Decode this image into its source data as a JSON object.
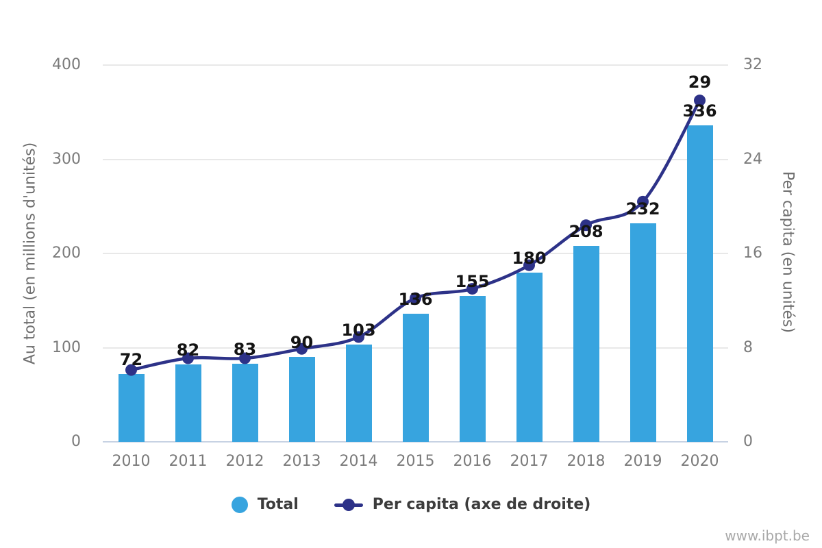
{
  "chart_data": {
    "type": "bar+line",
    "title": "",
    "categories": [
      "2010",
      "2011",
      "2012",
      "2013",
      "2014",
      "2015",
      "2016",
      "2017",
      "2018",
      "2019",
      "2020"
    ],
    "series": [
      {
        "name": "Total",
        "type": "bar",
        "axis": "left",
        "color": "#37a4df",
        "values": [
          72,
          82,
          83,
          90,
          103,
          136,
          155,
          180,
          208,
          232,
          336
        ],
        "point_labels": [
          "72",
          "82",
          "83",
          "90",
          "103",
          "136",
          "155",
          "180",
          "208",
          "232",
          "336"
        ]
      },
      {
        "name": "Per capita (axe de droite)",
        "type": "line",
        "axis": "right",
        "color": "#2d3288",
        "values": [
          6.1,
          7.1,
          7.1,
          7.9,
          8.9,
          12.2,
          13,
          15,
          18.4,
          20.4,
          29
        ],
        "point_labels": [
          "",
          "",
          "",
          "",
          "",
          "",
          "",
          "",
          "",
          "",
          "29"
        ]
      }
    ],
    "left_axis": {
      "title": "Au total (en millions d'unités)",
      "ticks": [
        0,
        100,
        200,
        300,
        400
      ],
      "range": [
        0,
        400
      ]
    },
    "right_axis": {
      "title": "Per capita (en unités)",
      "ticks": [
        0,
        8,
        16,
        24,
        32
      ],
      "range": [
        0,
        32
      ]
    },
    "grid": true,
    "legend_position": "bottom",
    "legend": [
      "Total",
      "Per capita (axe de droite)"
    ],
    "watermark": "www.ibpt.be",
    "colors": {
      "bar": "#37a4df",
      "line": "#2d3288",
      "grid": "#e8e8e8",
      "baseline": "#c7d2e3",
      "axis_text": "#7b7b7b",
      "label_text": "#141414",
      "legend_text": "#3c3c3c",
      "watermark": "#a8a8a8"
    }
  }
}
